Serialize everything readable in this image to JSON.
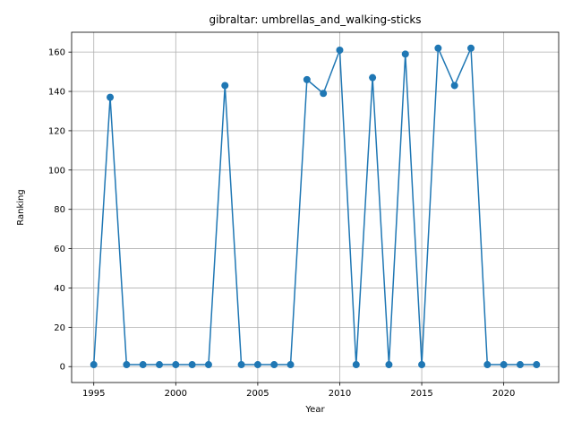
{
  "chart_data": {
    "type": "line",
    "title": "gibraltar: umbrellas_and_walking-sticks",
    "xlabel": "Year",
    "ylabel": "Ranking",
    "xlim": [
      1993.65,
      2023.35
    ],
    "ylim": [
      -8.1,
      170.1
    ],
    "xticks": [
      1995,
      2000,
      2005,
      2010,
      2015,
      2020
    ],
    "yticks": [
      0,
      20,
      40,
      60,
      80,
      100,
      120,
      140,
      160
    ],
    "grid": true,
    "series": [
      {
        "name": "umbrellas_and_walking-sticks",
        "color": "#1f77b4",
        "marker": "circle",
        "x": [
          1995,
          1996,
          1997,
          1998,
          1999,
          2000,
          2001,
          2002,
          2003,
          2004,
          2005,
          2006,
          2007,
          2008,
          2009,
          2010,
          2011,
          2012,
          2013,
          2014,
          2015,
          2016,
          2017,
          2018,
          2019,
          2020,
          2021,
          2022
        ],
        "y": [
          1,
          137,
          1,
          1,
          1,
          1,
          1,
          1,
          143,
          1,
          1,
          1,
          1,
          146,
          139,
          161,
          1,
          147,
          1,
          159,
          1,
          162,
          143,
          162,
          1,
          1,
          1,
          1
        ]
      }
    ]
  }
}
